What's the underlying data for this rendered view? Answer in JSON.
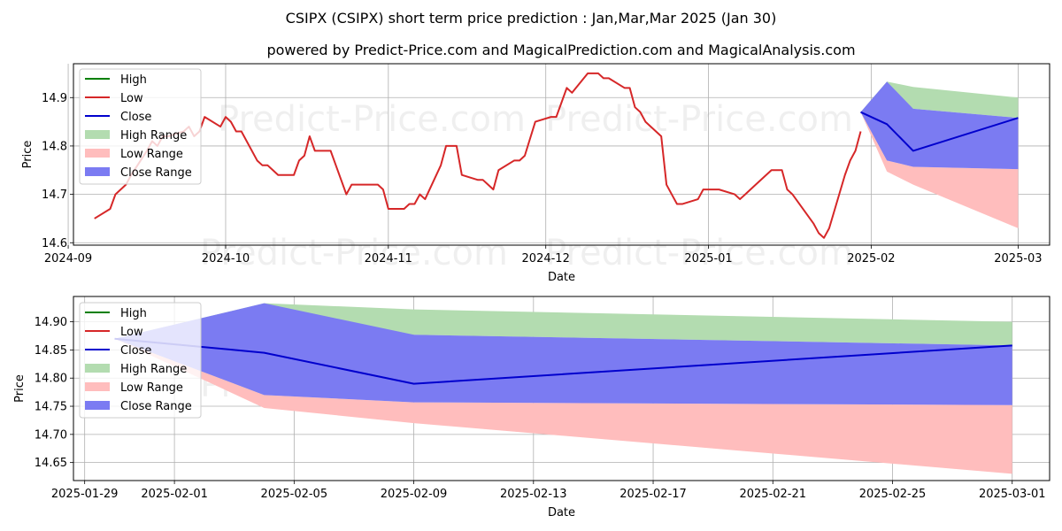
{
  "title": "CSIPX (CSIPX) short term price prediction : Jan,Mar,Mar 2025 (Jan 30)",
  "subtitle": "powered by Predict-Price.com and MagicalPrediction.com and MagicalAnalysis.com",
  "watermark": "Predict-Price.com",
  "colors": {
    "high": "#008000",
    "low": "#d62728",
    "close": "#0000cd",
    "high_range": "#b3dcb0",
    "low_range": "#ffbdbd",
    "close_range": "#7b7bf2"
  },
  "chart_data": [
    {
      "type": "line",
      "xlabel": "Date",
      "ylabel": "Price",
      "x_range": [
        "2024-09-02",
        "2025-03-07"
      ],
      "ylim": [
        14.595,
        14.97
      ],
      "grid": true,
      "legend_position": "top-left",
      "x_ticks": [
        "2024-09",
        "2024-10",
        "2024-11",
        "2024-12",
        "2025-01",
        "2025-02",
        "2025-03"
      ],
      "x_tick_dates": [
        "2024-09-01",
        "2024-10-01",
        "2024-11-01",
        "2024-12-01",
        "2025-01-01",
        "2025-02-01",
        "2025-03-01"
      ],
      "y_ticks": [
        "14.6",
        "14.7",
        "14.8",
        "14.9"
      ],
      "y_tick_values": [
        14.6,
        14.7,
        14.8,
        14.9
      ],
      "legend": [
        "High",
        "Low",
        "Close",
        "High Range",
        "Low Range",
        "Close Range"
      ],
      "history": {
        "name": "Low",
        "x": [
          "2024-09-06",
          "2024-09-09",
          "2024-09-10",
          "2024-09-11",
          "2024-09-12",
          "2024-09-13",
          "2024-09-16",
          "2024-09-17",
          "2024-09-18",
          "2024-09-19",
          "2024-09-20",
          "2024-09-23",
          "2024-09-24",
          "2024-09-25",
          "2024-09-26",
          "2024-09-27",
          "2024-09-30",
          "2024-10-01",
          "2024-10-02",
          "2024-10-03",
          "2024-10-04",
          "2024-10-07",
          "2024-10-08",
          "2024-10-09",
          "2024-10-10",
          "2024-10-11",
          "2024-10-14",
          "2024-10-15",
          "2024-10-16",
          "2024-10-17",
          "2024-10-18",
          "2024-10-21",
          "2024-10-22",
          "2024-10-23",
          "2024-10-24",
          "2024-10-25",
          "2024-10-28",
          "2024-10-29",
          "2024-10-30",
          "2024-10-31",
          "2024-11-01",
          "2024-11-04",
          "2024-11-05",
          "2024-11-06",
          "2024-11-07",
          "2024-11-08",
          "2024-11-11",
          "2024-11-12",
          "2024-11-13",
          "2024-11-14",
          "2024-11-15",
          "2024-11-18",
          "2024-11-19",
          "2024-11-20",
          "2024-11-21",
          "2024-11-22",
          "2024-11-25",
          "2024-11-26",
          "2024-11-27",
          "2024-11-29",
          "2024-12-02",
          "2024-12-03",
          "2024-12-04",
          "2024-12-05",
          "2024-12-06",
          "2024-12-09",
          "2024-12-10",
          "2024-12-11",
          "2024-12-12",
          "2024-12-13",
          "2024-12-16",
          "2024-12-17",
          "2024-12-18",
          "2024-12-19",
          "2024-12-20",
          "2024-12-23",
          "2024-12-24",
          "2024-12-26",
          "2024-12-27",
          "2024-12-30",
          "2024-12-31",
          "2025-01-02",
          "2025-01-03",
          "2025-01-06",
          "2025-01-07",
          "2025-01-08",
          "2025-01-10",
          "2025-01-13",
          "2025-01-14",
          "2025-01-15",
          "2025-01-16",
          "2025-01-17",
          "2025-01-21",
          "2025-01-22",
          "2025-01-23",
          "2025-01-24",
          "2025-01-27",
          "2025-01-28",
          "2025-01-29",
          "2025-01-30"
        ],
        "y": [
          14.65,
          14.67,
          14.7,
          14.71,
          14.72,
          14.74,
          14.79,
          14.81,
          14.8,
          14.82,
          14.82,
          14.83,
          14.84,
          14.82,
          14.83,
          14.86,
          14.84,
          14.86,
          14.85,
          14.83,
          14.83,
          14.77,
          14.76,
          14.76,
          14.75,
          14.74,
          14.74,
          14.77,
          14.78,
          14.82,
          14.79,
          14.79,
          14.76,
          14.73,
          14.7,
          14.72,
          14.72,
          14.72,
          14.72,
          14.71,
          14.67,
          14.67,
          14.68,
          14.68,
          14.7,
          14.69,
          14.76,
          14.8,
          14.8,
          14.8,
          14.74,
          14.73,
          14.73,
          14.72,
          14.71,
          14.75,
          14.77,
          14.77,
          14.78,
          14.85,
          14.86,
          14.86,
          14.89,
          14.92,
          14.91,
          14.95,
          14.95,
          14.95,
          14.94,
          14.94,
          14.92,
          14.92,
          14.88,
          14.87,
          14.85,
          14.82,
          14.72,
          14.68,
          14.68,
          14.69,
          14.71,
          14.71,
          14.71,
          14.7,
          14.69,
          14.7,
          14.72,
          14.75,
          14.75,
          14.75,
          14.71,
          14.7,
          14.64,
          14.62,
          14.61,
          14.63,
          14.74,
          14.77,
          14.79,
          14.83
        ]
      },
      "series": [
        {
          "name": "Close",
          "x": [
            "2025-01-30",
            "2025-02-04",
            "2025-02-09",
            "2025-03-01"
          ],
          "values": [
            14.87,
            14.845,
            14.79,
            14.858
          ]
        }
      ],
      "ranges": [
        {
          "name": "High Range",
          "x": [
            "2025-01-30",
            "2025-02-04",
            "2025-02-09",
            "2025-03-01"
          ],
          "upper": [
            14.87,
            14.933,
            14.922,
            14.9
          ],
          "lower": [
            14.87,
            14.77,
            14.877,
            14.858
          ]
        },
        {
          "name": "Low Range",
          "x": [
            "2025-01-30",
            "2025-02-04",
            "2025-02-09",
            "2025-03-01"
          ],
          "upper": [
            14.87,
            14.77,
            14.757,
            14.752
          ],
          "lower": [
            14.87,
            14.747,
            14.72,
            14.63
          ]
        },
        {
          "name": "Close Range",
          "x": [
            "2025-01-30",
            "2025-02-04",
            "2025-02-09",
            "2025-03-01"
          ],
          "upper": [
            14.87,
            14.933,
            14.877,
            14.858
          ],
          "lower": [
            14.87,
            14.77,
            14.757,
            14.752
          ]
        }
      ]
    },
    {
      "type": "line",
      "xlabel": "Date",
      "ylabel": "Price",
      "x_range": [
        "2025-01-28 15:00",
        "2025-03-02 06:00"
      ],
      "ylim": [
        14.618,
        14.945
      ],
      "grid": true,
      "legend_position": "top-left",
      "x_ticks": [
        "2025-01-29",
        "2025-02-01",
        "2025-02-05",
        "2025-02-09",
        "2025-02-13",
        "2025-02-17",
        "2025-02-21",
        "2025-02-25",
        "2025-03-01"
      ],
      "x_tick_dates": [
        "2025-01-29",
        "2025-02-01",
        "2025-02-05",
        "2025-02-09",
        "2025-02-13",
        "2025-02-17",
        "2025-02-21",
        "2025-02-25",
        "2025-03-01"
      ],
      "y_ticks": [
        "14.65",
        "14.70",
        "14.75",
        "14.80",
        "14.85",
        "14.90"
      ],
      "y_tick_values": [
        14.65,
        14.7,
        14.75,
        14.8,
        14.85,
        14.9
      ],
      "legend": [
        "High",
        "Low",
        "Close",
        "High Range",
        "Low Range",
        "Close Range"
      ],
      "series": [
        {
          "name": "Close",
          "x": [
            "2025-01-30",
            "2025-02-04",
            "2025-02-09",
            "2025-03-01"
          ],
          "values": [
            14.87,
            14.845,
            14.79,
            14.858
          ]
        }
      ],
      "ranges": [
        {
          "name": "High Range",
          "x": [
            "2025-01-30",
            "2025-02-04",
            "2025-02-09",
            "2025-03-01"
          ],
          "upper": [
            14.87,
            14.933,
            14.922,
            14.9
          ],
          "lower": [
            14.87,
            14.77,
            14.877,
            14.858
          ]
        },
        {
          "name": "Low Range",
          "x": [
            "2025-01-30",
            "2025-02-04",
            "2025-02-09",
            "2025-03-01"
          ],
          "upper": [
            14.87,
            14.77,
            14.757,
            14.752
          ],
          "lower": [
            14.87,
            14.747,
            14.72,
            14.63
          ]
        },
        {
          "name": "Close Range",
          "x": [
            "2025-01-30",
            "2025-02-04",
            "2025-02-09",
            "2025-03-01"
          ],
          "upper": [
            14.87,
            14.933,
            14.877,
            14.858
          ],
          "lower": [
            14.87,
            14.77,
            14.757,
            14.752
          ]
        }
      ]
    }
  ]
}
